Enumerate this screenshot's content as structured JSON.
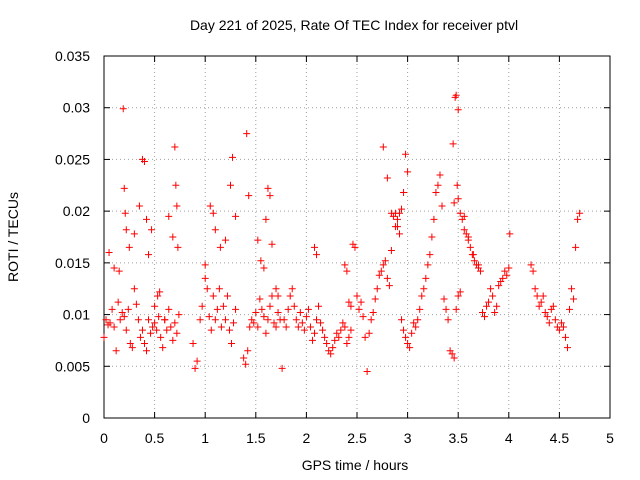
{
  "chart_data": {
    "type": "scatter",
    "title": "Day 221 of 2025, Rate Of TEC Index for receiver ptvl",
    "xlabel": "GPS time / hours",
    "ylabel": "ROTI / TECUs",
    "xlim": [
      0,
      5
    ],
    "ylim": [
      0,
      0.035
    ],
    "grid": true,
    "marker": "+",
    "color": "#ff0000",
    "x_ticks": [
      0,
      0.5,
      1,
      1.5,
      2,
      2.5,
      3,
      3.5,
      4,
      4.5,
      5
    ],
    "x_tick_labels": [
      "0",
      "0.5",
      "1",
      "1.5",
      "2",
      "2.5",
      "3",
      "3.5",
      "4",
      "4.5",
      "5"
    ],
    "y_ticks": [
      0,
      0.005,
      0.01,
      0.015,
      0.02,
      0.025,
      0.03,
      0.035
    ],
    "y_tick_labels": [
      "0",
      "0.005",
      "0.01",
      "0.015",
      "0.02",
      "0.025",
      "0.03",
      "0.035"
    ],
    "series": [
      {
        "name": "ROTI",
        "x": [
          0.0,
          0.02,
          0.04,
          0.06,
          0.08,
          0.1,
          0.12,
          0.14,
          0.16,
          0.18,
          0.2,
          0.22,
          0.24,
          0.26,
          0.28,
          0.3,
          0.32,
          0.34,
          0.36,
          0.38,
          0.4,
          0.42,
          0.44,
          0.46,
          0.48,
          0.5,
          0.52,
          0.54,
          0.56,
          0.58,
          0.6,
          0.62,
          0.64,
          0.66,
          0.68,
          0.7,
          0.72,
          0.74,
          0.05,
          0.1,
          0.15,
          0.19,
          0.2,
          0.21,
          0.22,
          0.25,
          0.3,
          0.35,
          0.38,
          0.4,
          0.42,
          0.44,
          0.47,
          0.5,
          0.53,
          0.55,
          0.6,
          0.64,
          0.68,
          0.7,
          0.71,
          0.72,
          0.73,
          0.88,
          0.9,
          0.92,
          0.95,
          0.97,
          1.0,
          1.02,
          1.04,
          1.06,
          1.08,
          1.1,
          1.12,
          1.14,
          1.16,
          1.18,
          1.2,
          1.22,
          1.24,
          1.26,
          1.28,
          1.3,
          1.0,
          1.05,
          1.08,
          1.1,
          1.15,
          1.2,
          1.25,
          1.27,
          1.3,
          1.38,
          1.4,
          1.42,
          1.44,
          1.46,
          1.48,
          1.5,
          1.52,
          1.54,
          1.56,
          1.58,
          1.6,
          1.62,
          1.64,
          1.66,
          1.68,
          1.7,
          1.72,
          1.74,
          1.41,
          1.43,
          1.52,
          1.55,
          1.58,
          1.6,
          1.62,
          1.64,
          1.66,
          1.7,
          1.72,
          1.76,
          1.78,
          1.8,
          1.82,
          1.84,
          1.86,
          1.88,
          1.9,
          1.92,
          1.94,
          1.96,
          1.98,
          2.0,
          2.02,
          2.04,
          2.06,
          2.08,
          2.1,
          2.12,
          2.14,
          2.16,
          2.18,
          2.2,
          2.22,
          2.24,
          2.26,
          2.28,
          2.3,
          2.32,
          2.34,
          2.36,
          2.38,
          2.4,
          2.42,
          2.44,
          2.46,
          2.48,
          2.08,
          2.1,
          2.38,
          2.4,
          2.42,
          2.44,
          2.5,
          2.52,
          2.54,
          2.56,
          2.58,
          2.6,
          2.62,
          2.64,
          2.66,
          2.68,
          2.7,
          2.72,
          2.74,
          2.76,
          2.78,
          2.8,
          2.82,
          2.84,
          2.86,
          2.88,
          2.9,
          2.92,
          2.94,
          2.96,
          2.98,
          3.0,
          2.76,
          2.8,
          2.84,
          2.88,
          2.9,
          2.92,
          2.94,
          2.96,
          2.98,
          3.0,
          3.02,
          3.04,
          3.06,
          3.08,
          3.1,
          3.12,
          3.14,
          3.16,
          3.18,
          3.2,
          3.22,
          3.24,
          3.26,
          3.28,
          3.3,
          3.32,
          3.34,
          3.36,
          3.38,
          3.4,
          3.42,
          3.44,
          3.46,
          3.48,
          3.5,
          3.52,
          3.54,
          3.56,
          3.58,
          3.6,
          3.62,
          3.64,
          3.66,
          3.68,
          3.7,
          3.72,
          3.45,
          3.47,
          3.48,
          3.5,
          3.46,
          3.49,
          3.5,
          3.52,
          3.56,
          3.6,
          3.65,
          3.7,
          3.74,
          3.76,
          3.78,
          3.8,
          3.82,
          3.84,
          3.86,
          3.88,
          3.9,
          3.92,
          3.94,
          3.96,
          3.98,
          4.0,
          4.01,
          4.22,
          4.24,
          4.26,
          4.28,
          4.3,
          4.32,
          4.34,
          4.36,
          4.38,
          4.4,
          4.42,
          4.44,
          4.46,
          4.48,
          4.5,
          4.52,
          4.54,
          4.56,
          4.58,
          4.6,
          4.62,
          4.64,
          4.66,
          4.68,
          4.7
        ],
        "y": [
          0.0078,
          0.0095,
          0.009,
          0.0092,
          0.0105,
          0.0088,
          0.0065,
          0.0112,
          0.0095,
          0.0102,
          0.0098,
          0.0085,
          0.0105,
          0.0072,
          0.0068,
          0.0125,
          0.011,
          0.0095,
          0.0078,
          0.0085,
          0.0072,
          0.0065,
          0.0095,
          0.0082,
          0.0088,
          0.0092,
          0.0085,
          0.0098,
          0.0078,
          0.0068,
          0.0095,
          0.0085,
          0.0105,
          0.0088,
          0.0075,
          0.0092,
          0.0082,
          0.01,
          0.016,
          0.0145,
          0.0142,
          0.0299,
          0.0222,
          0.0198,
          0.0182,
          0.0165,
          0.0178,
          0.0205,
          0.025,
          0.0248,
          0.0192,
          0.0158,
          0.0182,
          0.0108,
          0.0118,
          0.0122,
          0.0095,
          0.0195,
          0.0175,
          0.0262,
          0.0225,
          0.0205,
          0.0165,
          0.0072,
          0.0048,
          0.0055,
          0.0095,
          0.0108,
          0.0135,
          0.0125,
          0.0098,
          0.0085,
          0.0118,
          0.0095,
          0.0105,
          0.0125,
          0.0088,
          0.0108,
          0.0095,
          0.0118,
          0.0085,
          0.0072,
          0.0092,
          0.0105,
          0.0148,
          0.0205,
          0.0198,
          0.0182,
          0.0165,
          0.0172,
          0.0225,
          0.0252,
          0.0195,
          0.0058,
          0.0052,
          0.0065,
          0.0088,
          0.0095,
          0.0092,
          0.0102,
          0.0088,
          0.0115,
          0.0105,
          0.0098,
          0.0082,
          0.0095,
          0.0108,
          0.0118,
          0.0092,
          0.0088,
          0.0102,
          0.0095,
          0.0275,
          0.0215,
          0.0172,
          0.0152,
          0.0145,
          0.0192,
          0.0222,
          0.0215,
          0.0168,
          0.0125,
          0.0118,
          0.0048,
          0.0095,
          0.0088,
          0.0105,
          0.0118,
          0.0125,
          0.0108,
          0.0095,
          0.0088,
          0.0102,
          0.0092,
          0.0085,
          0.0098,
          0.0105,
          0.0088,
          0.0075,
          0.0082,
          0.0095,
          0.0108,
          0.0092,
          0.0085,
          0.0078,
          0.0072,
          0.0065,
          0.0062,
          0.0068,
          0.0075,
          0.0082,
          0.0078,
          0.0085,
          0.0092,
          0.0088,
          0.0072,
          0.0078,
          0.0085,
          0.0168,
          0.0165,
          0.0165,
          0.0158,
          0.0148,
          0.0142,
          0.0112,
          0.0108,
          0.0118,
          0.0105,
          0.0112,
          0.0098,
          0.0078,
          0.0045,
          0.0082,
          0.0095,
          0.0102,
          0.0115,
          0.0125,
          0.0138,
          0.0142,
          0.0148,
          0.0152,
          0.0135,
          0.0128,
          0.0162,
          0.0195,
          0.0198,
          0.0185,
          0.0178,
          0.0202,
          0.0218,
          0.0255,
          0.0238,
          0.0262,
          0.0232,
          0.0198,
          0.0185,
          0.0192,
          0.0198,
          0.0095,
          0.0085,
          0.0078,
          0.0072,
          0.0068,
          0.0082,
          0.0092,
          0.0088,
          0.0095,
          0.0105,
          0.0118,
          0.0125,
          0.0135,
          0.0148,
          0.0158,
          0.0175,
          0.0192,
          0.0218,
          0.0225,
          0.0235,
          0.0205,
          0.0115,
          0.0105,
          0.0095,
          0.0065,
          0.0062,
          0.0058,
          0.0105,
          0.0118,
          0.0122,
          0.0192,
          0.0195,
          0.0178,
          0.0172,
          0.0165,
          0.0158,
          0.0152,
          0.0148,
          0.0145,
          0.0142,
          0.0265,
          0.031,
          0.0312,
          0.0298,
          0.0208,
          0.0225,
          0.0212,
          0.0198,
          0.0182,
          0.0175,
          0.0158,
          0.0148,
          0.0102,
          0.0098,
          0.0108,
          0.0112,
          0.0125,
          0.0118,
          0.0102,
          0.0108,
          0.0128,
          0.0132,
          0.0135,
          0.0142,
          0.0138,
          0.0145,
          0.0178,
          0.0148,
          0.0142,
          0.0125,
          0.0118,
          0.0108,
          0.0112,
          0.0118,
          0.0102,
          0.0098,
          0.0092,
          0.0105,
          0.0108,
          0.0095,
          0.0088,
          0.0085,
          0.0092,
          0.0088,
          0.0078,
          0.0068,
          0.0105,
          0.0125,
          0.0115,
          0.0165,
          0.0192,
          0.0198
        ]
      }
    ]
  }
}
